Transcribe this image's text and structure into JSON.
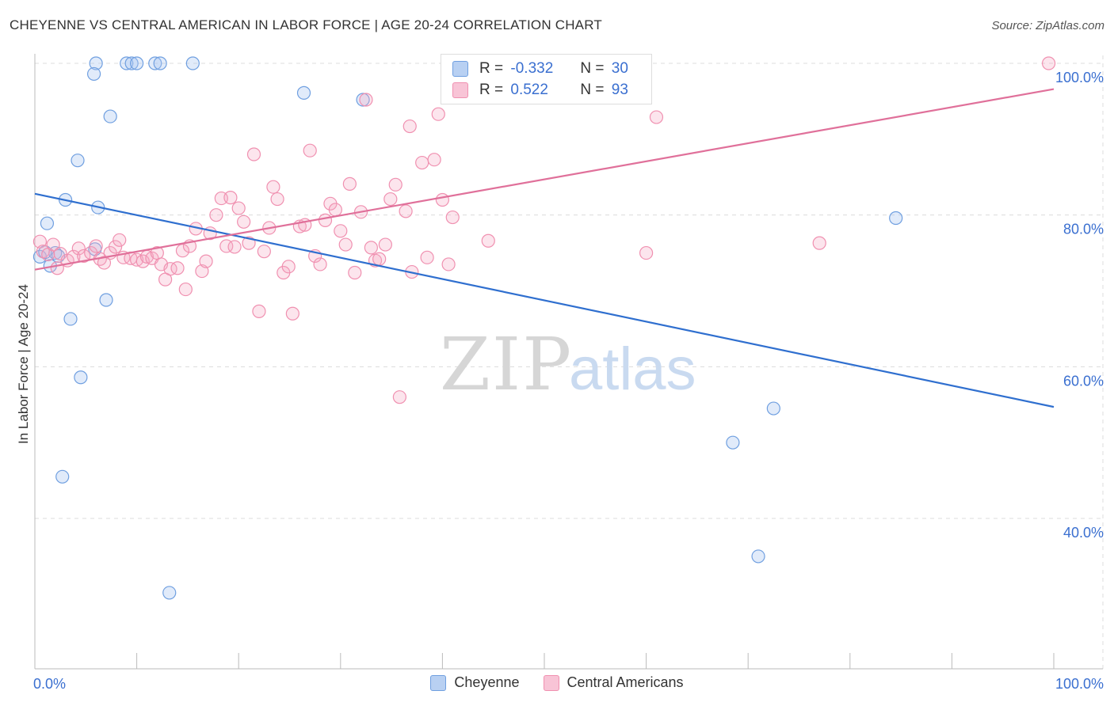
{
  "title": "CHEYENNE VS CENTRAL AMERICAN IN LABOR FORCE | AGE 20-24 CORRELATION CHART",
  "source": "Source: ZipAtlas.com",
  "watermark": {
    "zip": "ZIP",
    "atlas": "atlas"
  },
  "legend_stats": [
    {
      "r_label": "R =",
      "r_value": "-0.332",
      "n_label": "N =",
      "n_value": "30"
    },
    {
      "r_label": "R =",
      "r_value": "0.522",
      "n_label": "N =",
      "n_value": "93"
    }
  ],
  "chart_data": {
    "type": "scatter",
    "title": "CHEYENNE VS CENTRAL AMERICAN IN LABOR FORCE | AGE 20-24 CORRELATION CHART",
    "xlabel": "",
    "ylabel": "In Labor Force | Age 20-24",
    "xlim": [
      0,
      100
    ],
    "ylim": [
      20,
      102
    ],
    "x_tick_labels": [
      "0.0%",
      "100.0%"
    ],
    "y_ticks": [
      40,
      60,
      80,
      100
    ],
    "y_tick_labels": [
      "40.0%",
      "60.0%",
      "80.0%",
      "100.0%"
    ],
    "grid": true,
    "legend_position": "bottom",
    "series": [
      {
        "name": "Cheyenne",
        "color": "#6f9fe0",
        "line_color": "#2f6fcf",
        "trend": [
          [
            0,
            82.8
          ],
          [
            100,
            54.7
          ]
        ],
        "points": [
          [
            0.5,
            74.5
          ],
          [
            1.2,
            78.9
          ],
          [
            2.0,
            75.0
          ],
          [
            1.5,
            73.3
          ],
          [
            3.0,
            82.0
          ],
          [
            4.2,
            87.2
          ],
          [
            3.5,
            66.3
          ],
          [
            4.5,
            58.6
          ],
          [
            2.7,
            45.5
          ],
          [
            6.0,
            100
          ],
          [
            5.8,
            98.6
          ],
          [
            9.0,
            100
          ],
          [
            9.5,
            100
          ],
          [
            10.0,
            100
          ],
          [
            11.8,
            100
          ],
          [
            12.3,
            100
          ],
          [
            15.5,
            100
          ],
          [
            7.4,
            93.0
          ],
          [
            6.2,
            81.0
          ],
          [
            7.0,
            68.8
          ],
          [
            13.2,
            30.2
          ],
          [
            26.4,
            96.1
          ],
          [
            32.2,
            95.2
          ],
          [
            84.5,
            79.6
          ],
          [
            68.5,
            50.0
          ],
          [
            72.5,
            54.5
          ],
          [
            71.0,
            35.0
          ],
          [
            1.0,
            75.1
          ],
          [
            2.3,
            74.6
          ],
          [
            5.9,
            75.5
          ]
        ]
      },
      {
        "name": "Central Americans",
        "color": "#f090b0",
        "line_color": "#e0709a",
        "trend": [
          [
            0,
            72.8
          ],
          [
            100,
            96.6
          ]
        ],
        "points": [
          [
            0.5,
            76.5
          ],
          [
            0.8,
            75.2
          ],
          [
            1.3,
            74.8
          ],
          [
            1.8,
            76.1
          ],
          [
            2.2,
            73.0
          ],
          [
            2.5,
            74.9
          ],
          [
            3.2,
            74.0
          ],
          [
            3.8,
            74.5
          ],
          [
            4.3,
            75.6
          ],
          [
            4.8,
            74.6
          ],
          [
            5.5,
            75.0
          ],
          [
            6.0,
            75.9
          ],
          [
            6.4,
            74.2
          ],
          [
            6.8,
            73.7
          ],
          [
            7.4,
            75.0
          ],
          [
            7.9,
            75.8
          ],
          [
            8.3,
            76.7
          ],
          [
            8.7,
            74.4
          ],
          [
            9.4,
            74.3
          ],
          [
            10.0,
            74.1
          ],
          [
            10.6,
            73.9
          ],
          [
            11.0,
            74.5
          ],
          [
            11.5,
            74.3
          ],
          [
            12.0,
            75.0
          ],
          [
            12.4,
            73.5
          ],
          [
            12.8,
            71.5
          ],
          [
            13.3,
            72.9
          ],
          [
            14.0,
            73.0
          ],
          [
            14.5,
            75.3
          ],
          [
            14.8,
            70.2
          ],
          [
            15.2,
            75.9
          ],
          [
            15.8,
            78.2
          ],
          [
            16.4,
            72.6
          ],
          [
            16.8,
            73.9
          ],
          [
            17.2,
            77.6
          ],
          [
            17.8,
            80.0
          ],
          [
            18.3,
            82.2
          ],
          [
            18.8,
            75.9
          ],
          [
            19.2,
            82.3
          ],
          [
            19.6,
            75.8
          ],
          [
            20.0,
            80.9
          ],
          [
            20.5,
            79.1
          ],
          [
            21.0,
            76.3
          ],
          [
            21.5,
            88.0
          ],
          [
            22.0,
            67.3
          ],
          [
            22.5,
            75.2
          ],
          [
            23.0,
            78.3
          ],
          [
            23.4,
            83.7
          ],
          [
            23.8,
            82.1
          ],
          [
            24.4,
            72.4
          ],
          [
            24.9,
            73.2
          ],
          [
            25.3,
            67.0
          ],
          [
            26.0,
            78.5
          ],
          [
            26.5,
            78.7
          ],
          [
            27.0,
            88.5
          ],
          [
            27.5,
            74.6
          ],
          [
            28.0,
            73.5
          ],
          [
            28.5,
            79.3
          ],
          [
            29.0,
            81.5
          ],
          [
            29.5,
            80.7
          ],
          [
            30.0,
            77.9
          ],
          [
            30.5,
            76.1
          ],
          [
            30.9,
            84.1
          ],
          [
            31.4,
            72.4
          ],
          [
            32.0,
            80.4
          ],
          [
            32.5,
            95.2
          ],
          [
            33.0,
            75.7
          ],
          [
            33.4,
            74.0
          ],
          [
            33.8,
            74.2
          ],
          [
            34.4,
            76.1
          ],
          [
            34.9,
            82.1
          ],
          [
            35.4,
            84.0
          ],
          [
            35.8,
            56.0
          ],
          [
            36.4,
            80.5
          ],
          [
            36.8,
            91.7
          ],
          [
            37.0,
            72.5
          ],
          [
            38.0,
            86.9
          ],
          [
            38.5,
            74.4
          ],
          [
            39.2,
            87.3
          ],
          [
            39.6,
            93.3
          ],
          [
            40.0,
            82.0
          ],
          [
            40.6,
            73.5
          ],
          [
            41.0,
            79.7
          ],
          [
            42.0,
            99.5
          ],
          [
            42.5,
            98.8
          ],
          [
            43.0,
            97.9
          ],
          [
            43.5,
            97.0
          ],
          [
            44.0,
            96.5
          ],
          [
            44.5,
            76.6
          ],
          [
            56.5,
            100
          ],
          [
            60.0,
            75.0
          ],
          [
            61.0,
            92.9
          ],
          [
            77.0,
            76.3
          ],
          [
            99.5,
            100
          ]
        ]
      }
    ]
  }
}
